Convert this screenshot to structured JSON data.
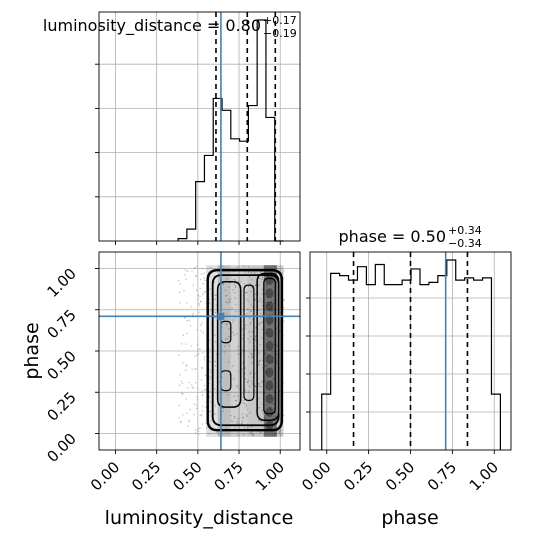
{
  "chart_data": {
    "type": "corner",
    "parameters": [
      "luminosity_distance",
      "phase"
    ],
    "truths": {
      "luminosity_distance": 0.64,
      "phase": 0.71
    },
    "ticks": [
      "0.00",
      "0.25",
      "0.50",
      "0.75",
      "1.00"
    ],
    "panels": [
      {
        "id": "hist-luminosity-distance",
        "type": "histogram",
        "parameter": "luminosity_distance",
        "title_main": "luminosity_distance = 0.80",
        "title_plus": "+0.17",
        "title_minus": "−0.19",
        "xlim": [
          -0.1,
          1.12
        ],
        "bin_edges": [
          0.38,
          0.4333,
          0.4867,
          0.54,
          0.5933,
          0.6467,
          0.7,
          0.7533,
          0.8067,
          0.86,
          0.9133,
          0.9667,
          1.02
        ],
        "counts": [
          0.01,
          0.05,
          0.25,
          0.36,
          0.6,
          0.55,
          0.43,
          0.42,
          0.57,
          0.93,
          0.52,
          0.0
        ],
        "quantiles": [
          0.61,
          0.8,
          0.97
        ]
      },
      {
        "id": "hist-phase",
        "type": "histogram",
        "parameter": "phase",
        "title_main": "phase = 0.50",
        "title_plus": "+0.34",
        "title_minus": "−0.34",
        "xlim": [
          -0.1,
          1.1
        ],
        "bin_edges": [
          -0.03,
          0.0233,
          0.0767,
          0.13,
          0.1833,
          0.2367,
          0.29,
          0.3433,
          0.3967,
          0.45,
          0.5033,
          0.5567,
          0.61,
          0.6633,
          0.7167,
          0.77,
          0.8233,
          0.8767,
          0.93,
          0.9833,
          1.0367
        ],
        "counts": [
          0.25,
          0.79,
          0.78,
          0.76,
          0.82,
          0.74,
          0.83,
          0.74,
          0.74,
          0.76,
          0.81,
          0.74,
          0.75,
          0.78,
          0.85,
          0.76,
          0.77,
          0.76,
          0.77,
          0.25
        ],
        "quantiles": [
          0.16,
          0.5,
          0.84
        ]
      },
      {
        "id": "joint-luminosity-distance-phase",
        "type": "2d-density",
        "x_parameter": "luminosity_distance",
        "y_parameter": "phase",
        "xlim": [
          -0.1,
          1.12
        ],
        "ylim": [
          -0.1,
          1.1
        ],
        "density_extent": {
          "x": [
            0.42,
            1.02
          ],
          "y": [
            -0.02,
            1.02
          ]
        },
        "contour_levels": 4
      }
    ],
    "xlabels": [
      "luminosity_distance",
      "phase"
    ],
    "ylabels": [
      "phase"
    ],
    "colors": {
      "truth": "#4682b4",
      "step": "#000000",
      "quantile": "#000000",
      "grid": "#b0b0b0",
      "points": "#808080"
    }
  }
}
